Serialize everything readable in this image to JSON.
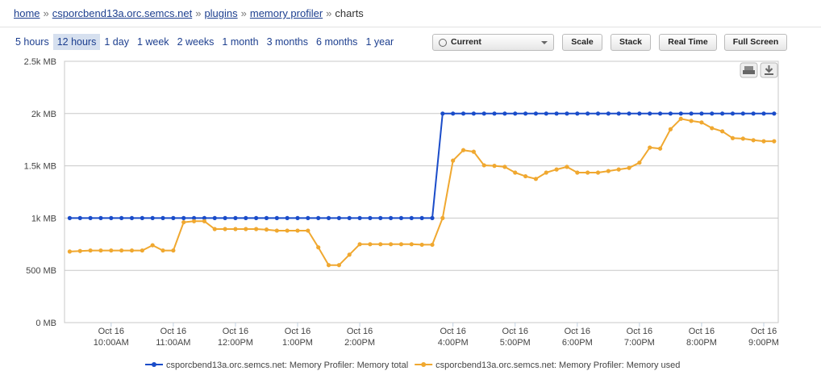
{
  "breadcrumb": {
    "links": [
      "home",
      "csporcbend13a.orc.semcs.net",
      "plugins",
      "memory profiler"
    ],
    "current": "charts",
    "separator": "»"
  },
  "ranges": {
    "items": [
      "5 hours",
      "12 hours",
      "1 day",
      "1 week",
      "2 weeks",
      "1 month",
      "3 months",
      "6 months",
      "1 year"
    ],
    "selected": 1
  },
  "toolbar": {
    "dropdown": "Current",
    "buttons": [
      "Scale",
      "Stack",
      "Real Time",
      "Full Screen"
    ]
  },
  "chart_data": {
    "type": "line",
    "ordinal": true,
    "x": [
      560,
      570,
      580,
      590,
      600,
      610,
      620,
      630,
      640,
      650,
      660,
      670,
      680,
      690,
      700,
      710,
      720,
      730,
      740,
      750,
      760,
      770,
      780,
      790,
      800,
      810,
      820,
      830,
      840,
      850,
      860,
      870,
      880,
      890,
      900,
      910,
      950,
      960,
      970,
      980,
      990,
      1000,
      1010,
      1020,
      1030,
      1040,
      1050,
      1060,
      1070,
      1080,
      1090,
      1100,
      1110,
      1120,
      1130,
      1140,
      1150,
      1160,
      1170,
      1180,
      1190,
      1200,
      1210,
      1220,
      1230,
      1240,
      1250,
      1260,
      1270
    ],
    "series": [
      {
        "name": "csporcbend13a.orc.semcs.net: Memory Profiler: Memory total",
        "color": "#1a4cc9",
        "values": [
          1000,
          1000,
          1000,
          1000,
          1000,
          1000,
          1000,
          1000,
          1000,
          1000,
          1000,
          1000,
          1000,
          1000,
          1000,
          1000,
          1000,
          1000,
          1000,
          1000,
          1000,
          1000,
          1000,
          1000,
          1000,
          1000,
          1000,
          1000,
          1000,
          1000,
          1000,
          1000,
          1000,
          1000,
          1000,
          1000,
          2000,
          2000,
          2000,
          2000,
          2000,
          2000,
          2000,
          2000,
          2000,
          2000,
          2000,
          2000,
          2000,
          2000,
          2000,
          2000,
          2000,
          2000,
          2000,
          2000,
          2000,
          2000,
          2000,
          2000,
          2000,
          2000,
          2000,
          2000,
          2000,
          2000,
          2000,
          2000,
          2000
        ]
      },
      {
        "name": "csporcbend13a.orc.semcs.net: Memory Profiler: Memory used",
        "color": "#f0a830",
        "values": [
          680,
          685,
          690,
          690,
          690,
          690,
          690,
          690,
          740,
          690,
          690,
          960,
          970,
          970,
          895,
          895,
          895,
          895,
          895,
          890,
          880,
          880,
          880,
          880,
          720,
          550,
          550,
          650,
          750,
          750,
          750,
          750,
          750,
          750,
          745,
          745,
          1000,
          1550,
          1650,
          1635,
          1505,
          1500,
          1490,
          1435,
          1400,
          1375,
          1435,
          1465,
          1490,
          1435,
          1435,
          1435,
          1450,
          1465,
          1480,
          1530,
          1675,
          1665,
          1850,
          1950,
          1930,
          1915,
          1860,
          1830,
          1765,
          1760,
          1745,
          1735,
          1735
        ]
      }
    ],
    "xlim": [
      555,
      1274
    ],
    "xticks": [
      {
        "value": 600,
        "label": [
          "Oct 16",
          "10:00AM"
        ]
      },
      {
        "value": 660,
        "label": [
          "Oct 16",
          "11:00AM"
        ]
      },
      {
        "value": 720,
        "label": [
          "Oct 16",
          "12:00PM"
        ]
      },
      {
        "value": 780,
        "label": [
          "Oct 16",
          "1:00PM"
        ]
      },
      {
        "value": 840,
        "label": [
          "Oct 16",
          "2:00PM"
        ]
      },
      {
        "value": 960,
        "label": [
          "Oct 16",
          "4:00PM"
        ]
      },
      {
        "value": 1020,
        "label": [
          "Oct 16",
          "5:00PM"
        ]
      },
      {
        "value": 1080,
        "label": [
          "Oct 16",
          "6:00PM"
        ]
      },
      {
        "value": 1140,
        "label": [
          "Oct 16",
          "7:00PM"
        ]
      },
      {
        "value": 1200,
        "label": [
          "Oct 16",
          "8:00PM"
        ]
      },
      {
        "value": 1260,
        "label": [
          "Oct 16",
          "9:00PM"
        ]
      }
    ],
    "ylim": [
      0,
      2500
    ],
    "yticks": [
      {
        "value": 0,
        "label": "0 MB"
      },
      {
        "value": 500,
        "label": "500 MB"
      },
      {
        "value": 1000,
        "label": "1k MB"
      },
      {
        "value": 1500,
        "label": "1.5k MB"
      },
      {
        "value": 2000,
        "label": "2k MB"
      },
      {
        "value": 2500,
        "label": "2.5k MB"
      }
    ],
    "grid": true,
    "legend": "bottom"
  }
}
